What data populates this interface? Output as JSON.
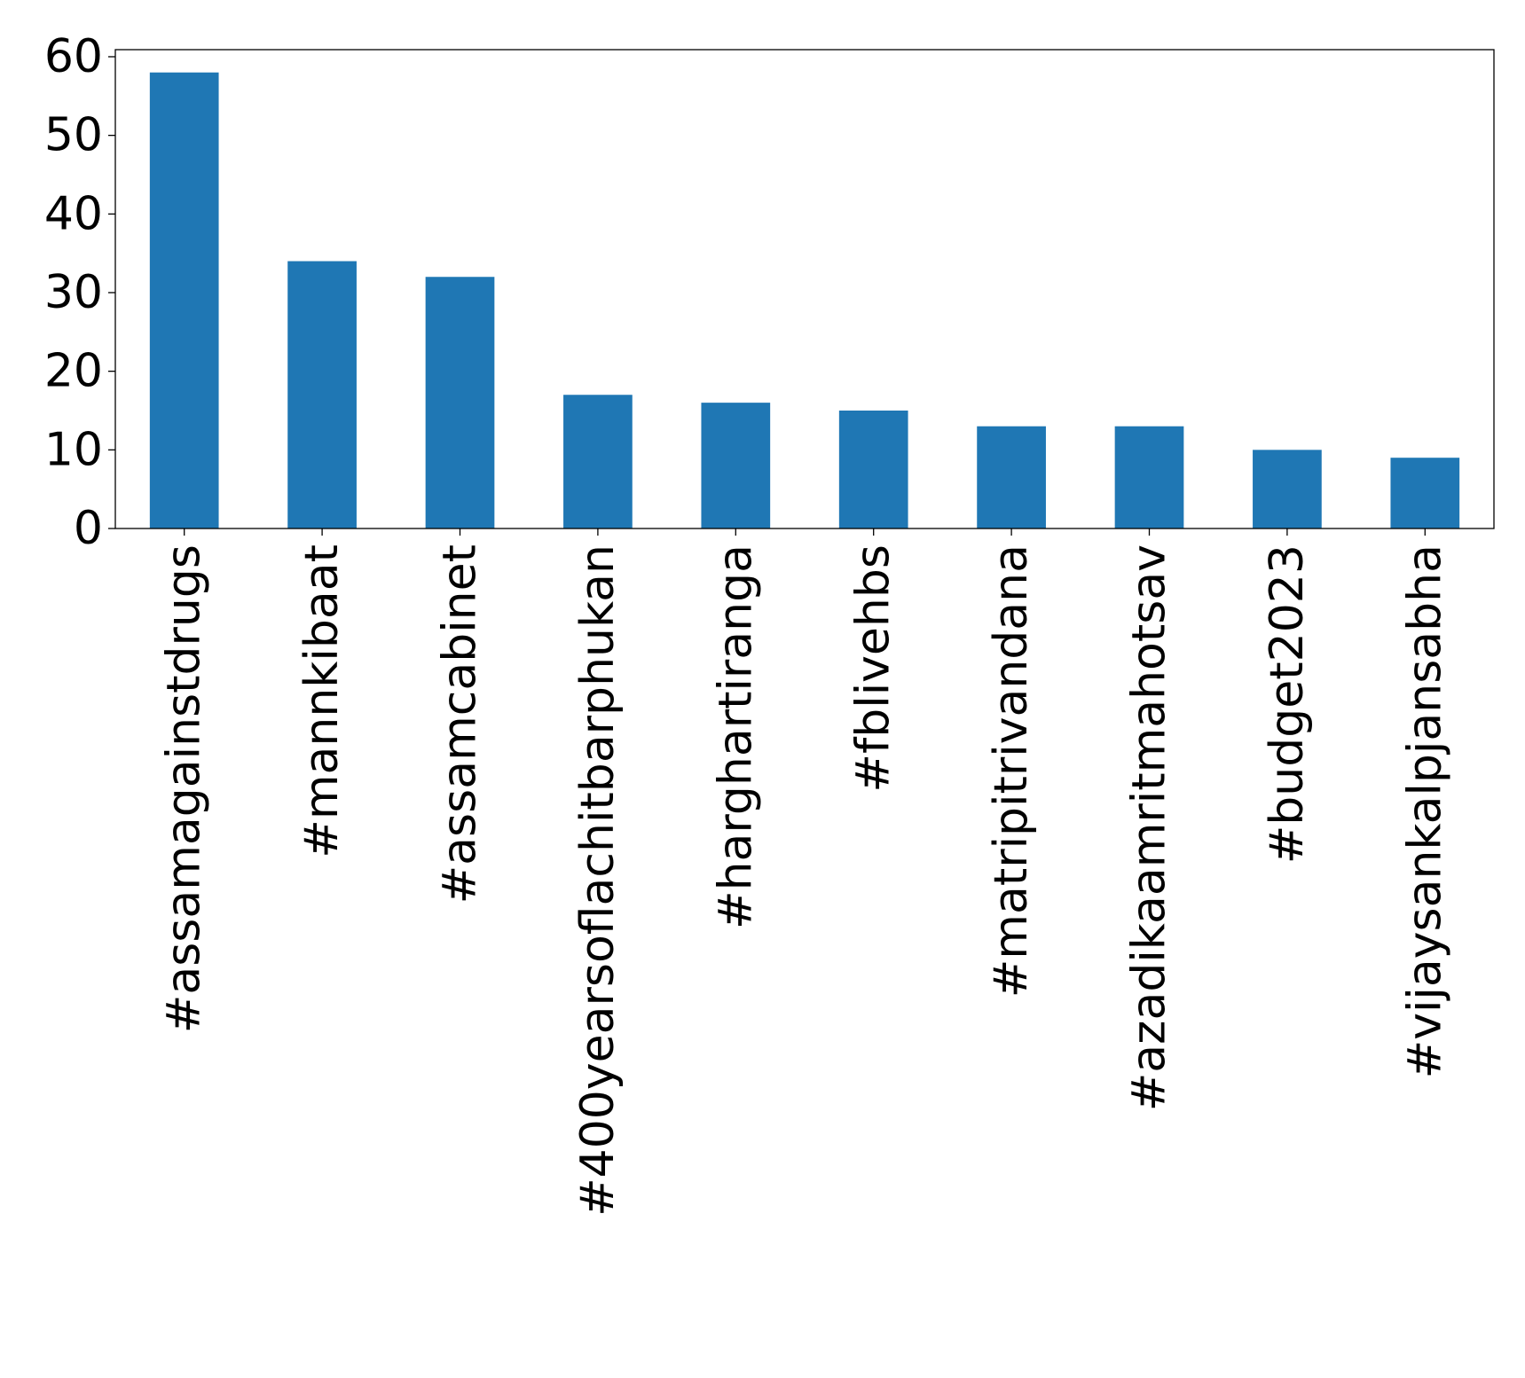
{
  "chart_data": {
    "type": "bar",
    "categories": [
      "#assamagainstdrugs",
      "#mannkibaat",
      "#assamcabinet",
      "#400yearsoflachitbarphukan",
      "#harghartiranga",
      "#fblivehbs",
      "#matripitrivandana",
      "#azadikaamritmahotsav",
      "#budget2023",
      "#vijaysankalpjansabha"
    ],
    "values": [
      58,
      34,
      32,
      17,
      16,
      15,
      13,
      13,
      10,
      9
    ],
    "title": "",
    "xlabel": "",
    "ylabel": "",
    "ylim": [
      0,
      60.9
    ],
    "yticks": [
      0,
      10,
      20,
      30,
      40,
      50,
      60
    ],
    "grid": false,
    "legend": "none",
    "colors": {
      "bar": "#1f77b4",
      "axis": "#000000",
      "background": "#ffffff"
    }
  }
}
